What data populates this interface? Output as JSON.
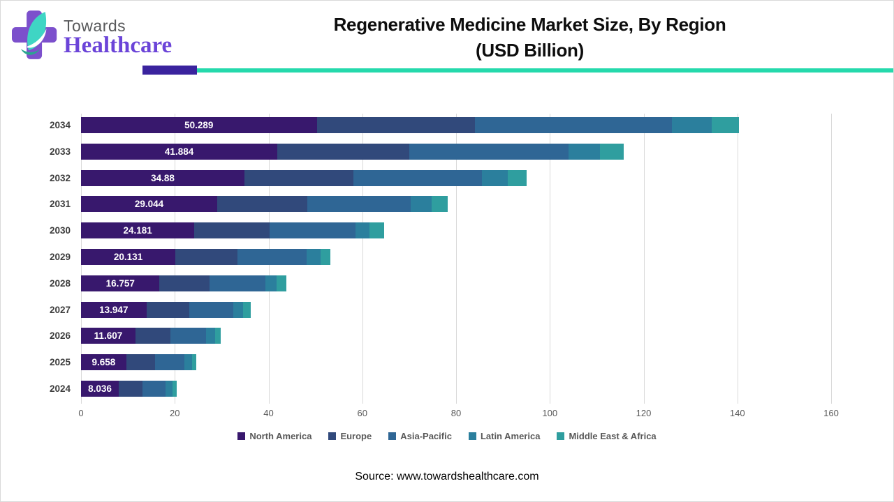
{
  "header": {
    "logo": {
      "line1": "Towards",
      "line2": "Healthcare"
    },
    "title_line1": "Regenerative Medicine Market Size, By Region",
    "title_line2": "(USD Billion)"
  },
  "chart_data": {
    "type": "bar",
    "orientation": "horizontal",
    "stacked": true,
    "title": "Regenerative Medicine Market Size, By Region (USD Billion)",
    "categories": [
      "2034",
      "2033",
      "2032",
      "2031",
      "2030",
      "2029",
      "2028",
      "2027",
      "2026",
      "2025",
      "2024"
    ],
    "series": [
      {
        "name": "North America",
        "color": "#38186d",
        "values": [
          50.289,
          41.884,
          34.88,
          29.044,
          24.181,
          20.131,
          16.757,
          13.947,
          11.607,
          9.658,
          8.036
        ]
      },
      {
        "name": "Europe",
        "color": "#31497b",
        "values": [
          33.8,
          28.1,
          23.2,
          19.2,
          16.1,
          13.3,
          10.7,
          9.1,
          7.4,
          6.1,
          5.1
        ]
      },
      {
        "name": "Asia-Pacific",
        "color": "#2f6695",
        "values": [
          42.0,
          34.0,
          27.5,
          22.0,
          18.2,
          14.7,
          11.9,
          9.4,
          7.7,
          6.3,
          4.9
        ]
      },
      {
        "name": "Latin America",
        "color": "#2b7f9d",
        "values": [
          8.5,
          6.7,
          5.4,
          4.6,
          3.1,
          3.0,
          2.4,
          2.1,
          1.9,
          1.6,
          1.5
        ]
      },
      {
        "name": "Middle East & Africa",
        "color": "#2f9e9f",
        "values": [
          5.7,
          5.1,
          4.0,
          3.4,
          3.1,
          2.1,
          2.1,
          1.6,
          1.2,
          1.0,
          0.9
        ]
      }
    ],
    "bar_labels": [
      "50.289",
      "41.884",
      "34.88",
      "29.044",
      "24.181",
      "20.131",
      "16.757",
      "13.947",
      "11.607",
      "9.658",
      "8.036"
    ],
    "xlim": [
      0,
      160
    ],
    "xticks": [
      0,
      20,
      40,
      60,
      80,
      100,
      120,
      140,
      160
    ],
    "grid": "vertical",
    "legend_position": "bottom"
  },
  "footer": {
    "source": "Source: www.towardshealthcare.com"
  }
}
